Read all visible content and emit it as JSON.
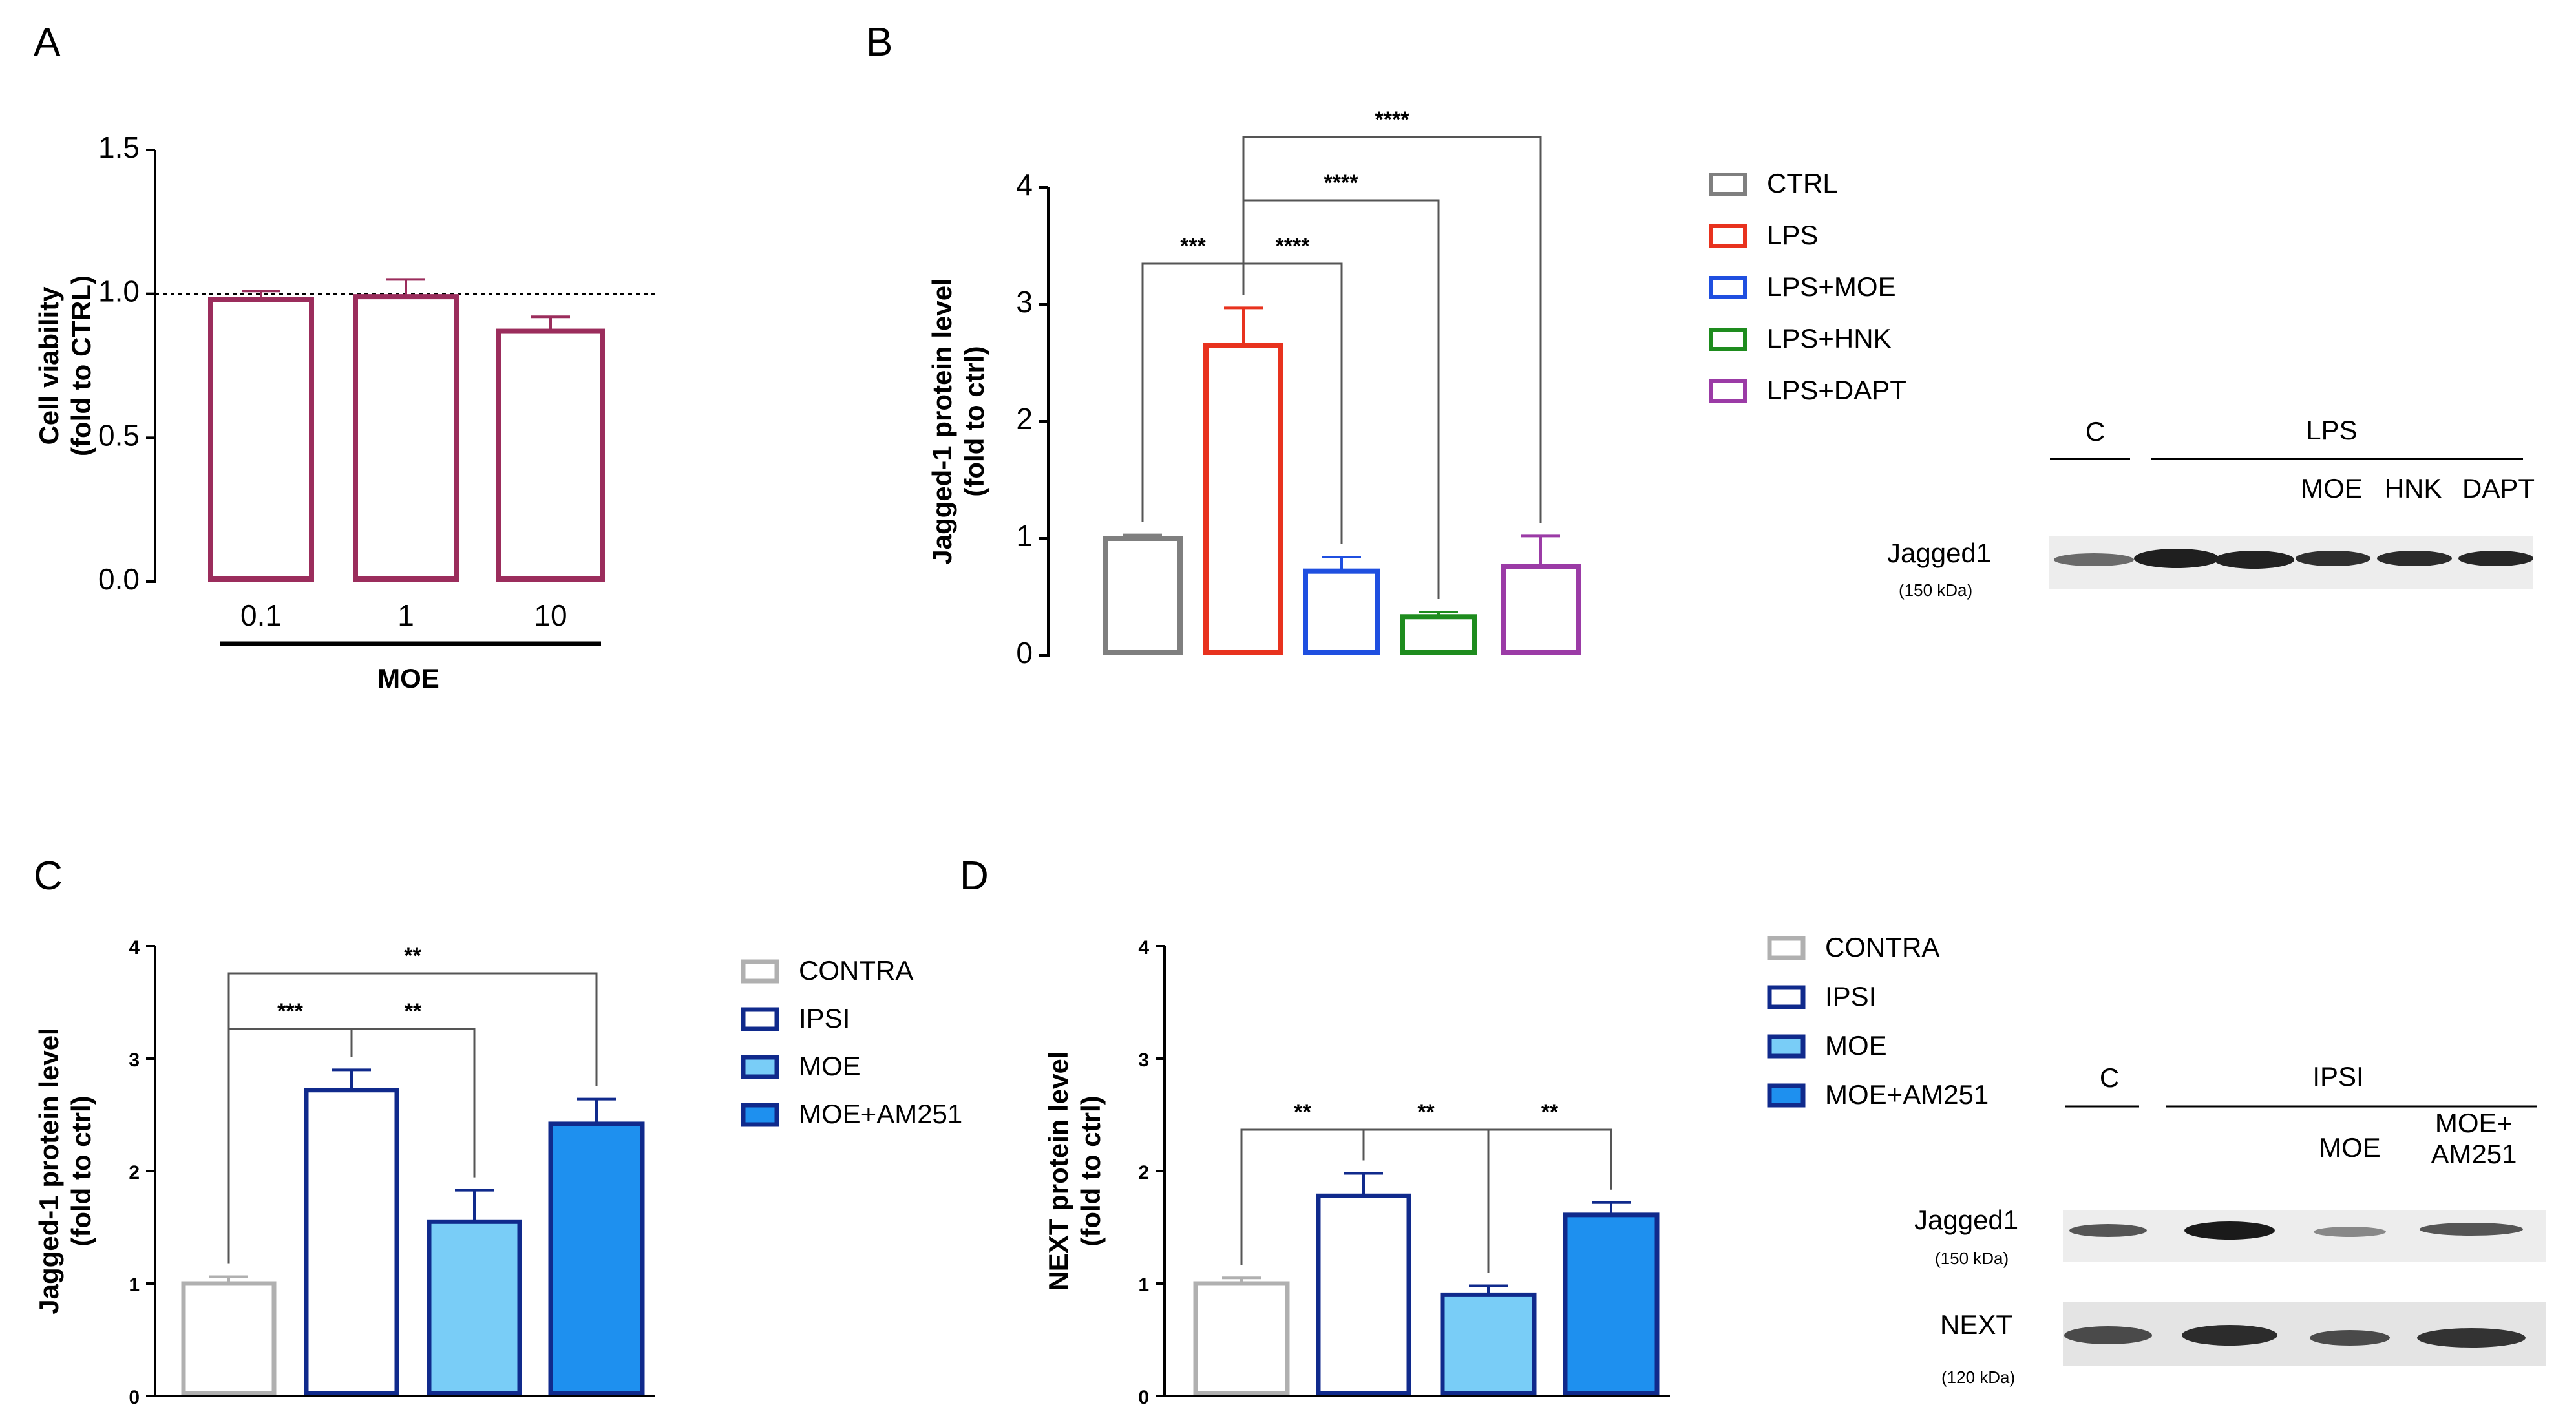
{
  "panels": {
    "A": "A",
    "B": "B",
    "C": "C",
    "D": "D"
  },
  "chart_data": [
    {
      "id": "A",
      "type": "bar",
      "categories": [
        "0.1",
        "1",
        "10"
      ],
      "values": [
        0.98,
        0.99,
        0.87
      ],
      "errors": [
        0.03,
        0.06,
        0.05
      ],
      "ylabel_lines": [
        "Cell viability",
        "(fold to CTRL)"
      ],
      "group_label": "MOE",
      "ylim": [
        0,
        1.5
      ],
      "yticks": [
        "0.0",
        "0.5",
        "1.0",
        "1.5"
      ],
      "reference_line": 1.0,
      "color": "#9b2d5c"
    },
    {
      "id": "B",
      "type": "bar",
      "categories": [
        "CTRL",
        "LPS",
        "LPS+MOE",
        "LPS+HNK",
        "LPS+DAPT"
      ],
      "values": [
        1.0,
        2.65,
        0.72,
        0.33,
        0.76
      ],
      "errors": [
        0.03,
        0.32,
        0.12,
        0.04,
        0.26
      ],
      "colors": [
        "#7f7f7f",
        "#e8321e",
        "#1f4fe0",
        "#1e8c1e",
        "#9b3ba6"
      ],
      "ylabel_lines": [
        "Jagged-1 protein level",
        "(fold to ctrl)"
      ],
      "ylim": [
        0,
        4
      ],
      "yticks": [
        "0",
        "1",
        "2",
        "3",
        "4"
      ],
      "legend": [
        "CTRL",
        "LPS",
        "LPS+MOE",
        "LPS+HNK",
        "LPS+DAPT"
      ],
      "significance": [
        {
          "from": 0,
          "to": 1,
          "label": "***"
        },
        {
          "from": 1,
          "to": 2,
          "label": "****"
        },
        {
          "from": 1,
          "to": 3,
          "label": "****"
        },
        {
          "from": 1,
          "to": 4,
          "label": "****"
        }
      ]
    },
    {
      "id": "C",
      "type": "bar",
      "categories": [
        "CONTRA",
        "IPSI",
        "MOE",
        "MOE+AM251"
      ],
      "values": [
        1.0,
        2.72,
        1.55,
        2.42
      ],
      "errors": [
        0.06,
        0.18,
        0.28,
        0.22
      ],
      "fills": [
        "#ffffff",
        "#ffffff",
        "#79cdf7",
        "#1e90ef"
      ],
      "strokes": [
        "#b0b0b0",
        "#102a8c",
        "#102a8c",
        "#102a8c"
      ],
      "ylabel_lines": [
        "Jagged-1 protein level",
        "(fold to ctrl)"
      ],
      "ylim": [
        0,
        4
      ],
      "yticks": [
        "0",
        "1",
        "2",
        "3",
        "4"
      ],
      "legend": [
        "CONTRA",
        "IPSI",
        "MOE",
        "MOE+AM251"
      ],
      "significance": [
        {
          "from": 0,
          "to": 1,
          "label": "***"
        },
        {
          "from": 1,
          "to": 2,
          "label": "**"
        },
        {
          "from": 0,
          "to": 3,
          "label": "**"
        }
      ]
    },
    {
      "id": "D",
      "type": "bar",
      "categories": [
        "CONTRA",
        "IPSI",
        "MOE",
        "MOE+AM251"
      ],
      "values": [
        1.0,
        1.78,
        0.9,
        1.61
      ],
      "errors": [
        0.05,
        0.2,
        0.08,
        0.11
      ],
      "fills": [
        "#ffffff",
        "#ffffff",
        "#79cdf7",
        "#1e90ef"
      ],
      "strokes": [
        "#b0b0b0",
        "#102a8c",
        "#102a8c",
        "#102a8c"
      ],
      "ylabel_lines": [
        "NEXT protein level",
        "(fold to ctrl)"
      ],
      "ylim": [
        0,
        4
      ],
      "yticks": [
        "0",
        "1",
        "2",
        "3",
        "4"
      ],
      "legend": [
        "CONTRA",
        "IPSI",
        "MOE",
        "MOE+AM251"
      ],
      "significance": [
        {
          "from": 0,
          "to": 1,
          "label": "**"
        },
        {
          "from": 1,
          "to": 2,
          "label": "**"
        },
        {
          "from": 2,
          "to": 3,
          "label": "**"
        }
      ]
    }
  ],
  "blots": {
    "B": {
      "c_label": "C",
      "group_label": "LPS",
      "lane_labels": [
        "MOE",
        "HNK",
        "DAPT"
      ],
      "band_name": "Jagged1",
      "band_size": "(150 kDa)"
    },
    "D": {
      "c_label": "C",
      "group_label": "IPSI",
      "lane_label_1": "MOE",
      "lane_label_2_line1": "MOE+",
      "lane_label_2_line2": "AM251",
      "band1_name": "Jagged1",
      "band1_size": "(150 kDa)",
      "band2_name": "NEXT",
      "band2_size": "(120 kDa)"
    }
  }
}
